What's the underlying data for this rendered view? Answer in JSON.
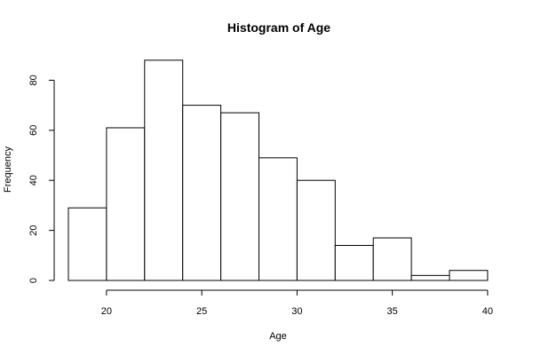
{
  "chart_data": {
    "type": "bar",
    "title": "Histogram of Age",
    "xlabel": "Age",
    "ylabel": "Frequency",
    "bins": [
      {
        "x0": 18,
        "x1": 20,
        "count": 29
      },
      {
        "x0": 20,
        "x1": 22,
        "count": 61
      },
      {
        "x0": 22,
        "x1": 24,
        "count": 88
      },
      {
        "x0": 24,
        "x1": 26,
        "count": 70
      },
      {
        "x0": 26,
        "x1": 28,
        "count": 67
      },
      {
        "x0": 28,
        "x1": 30,
        "count": 49
      },
      {
        "x0": 30,
        "x1": 32,
        "count": 40
      },
      {
        "x0": 32,
        "x1": 34,
        "count": 14
      },
      {
        "x0": 34,
        "x1": 36,
        "count": 17
      },
      {
        "x0": 36,
        "x1": 38,
        "count": 2
      },
      {
        "x0": 38,
        "x1": 40,
        "count": 4
      }
    ],
    "xlim": [
      18,
      40
    ],
    "ylim": [
      0,
      88
    ],
    "x_ticks": [
      20,
      25,
      30,
      35,
      40
    ],
    "y_ticks": [
      0,
      20,
      40,
      60,
      80
    ],
    "grid": false,
    "legend": "none"
  }
}
